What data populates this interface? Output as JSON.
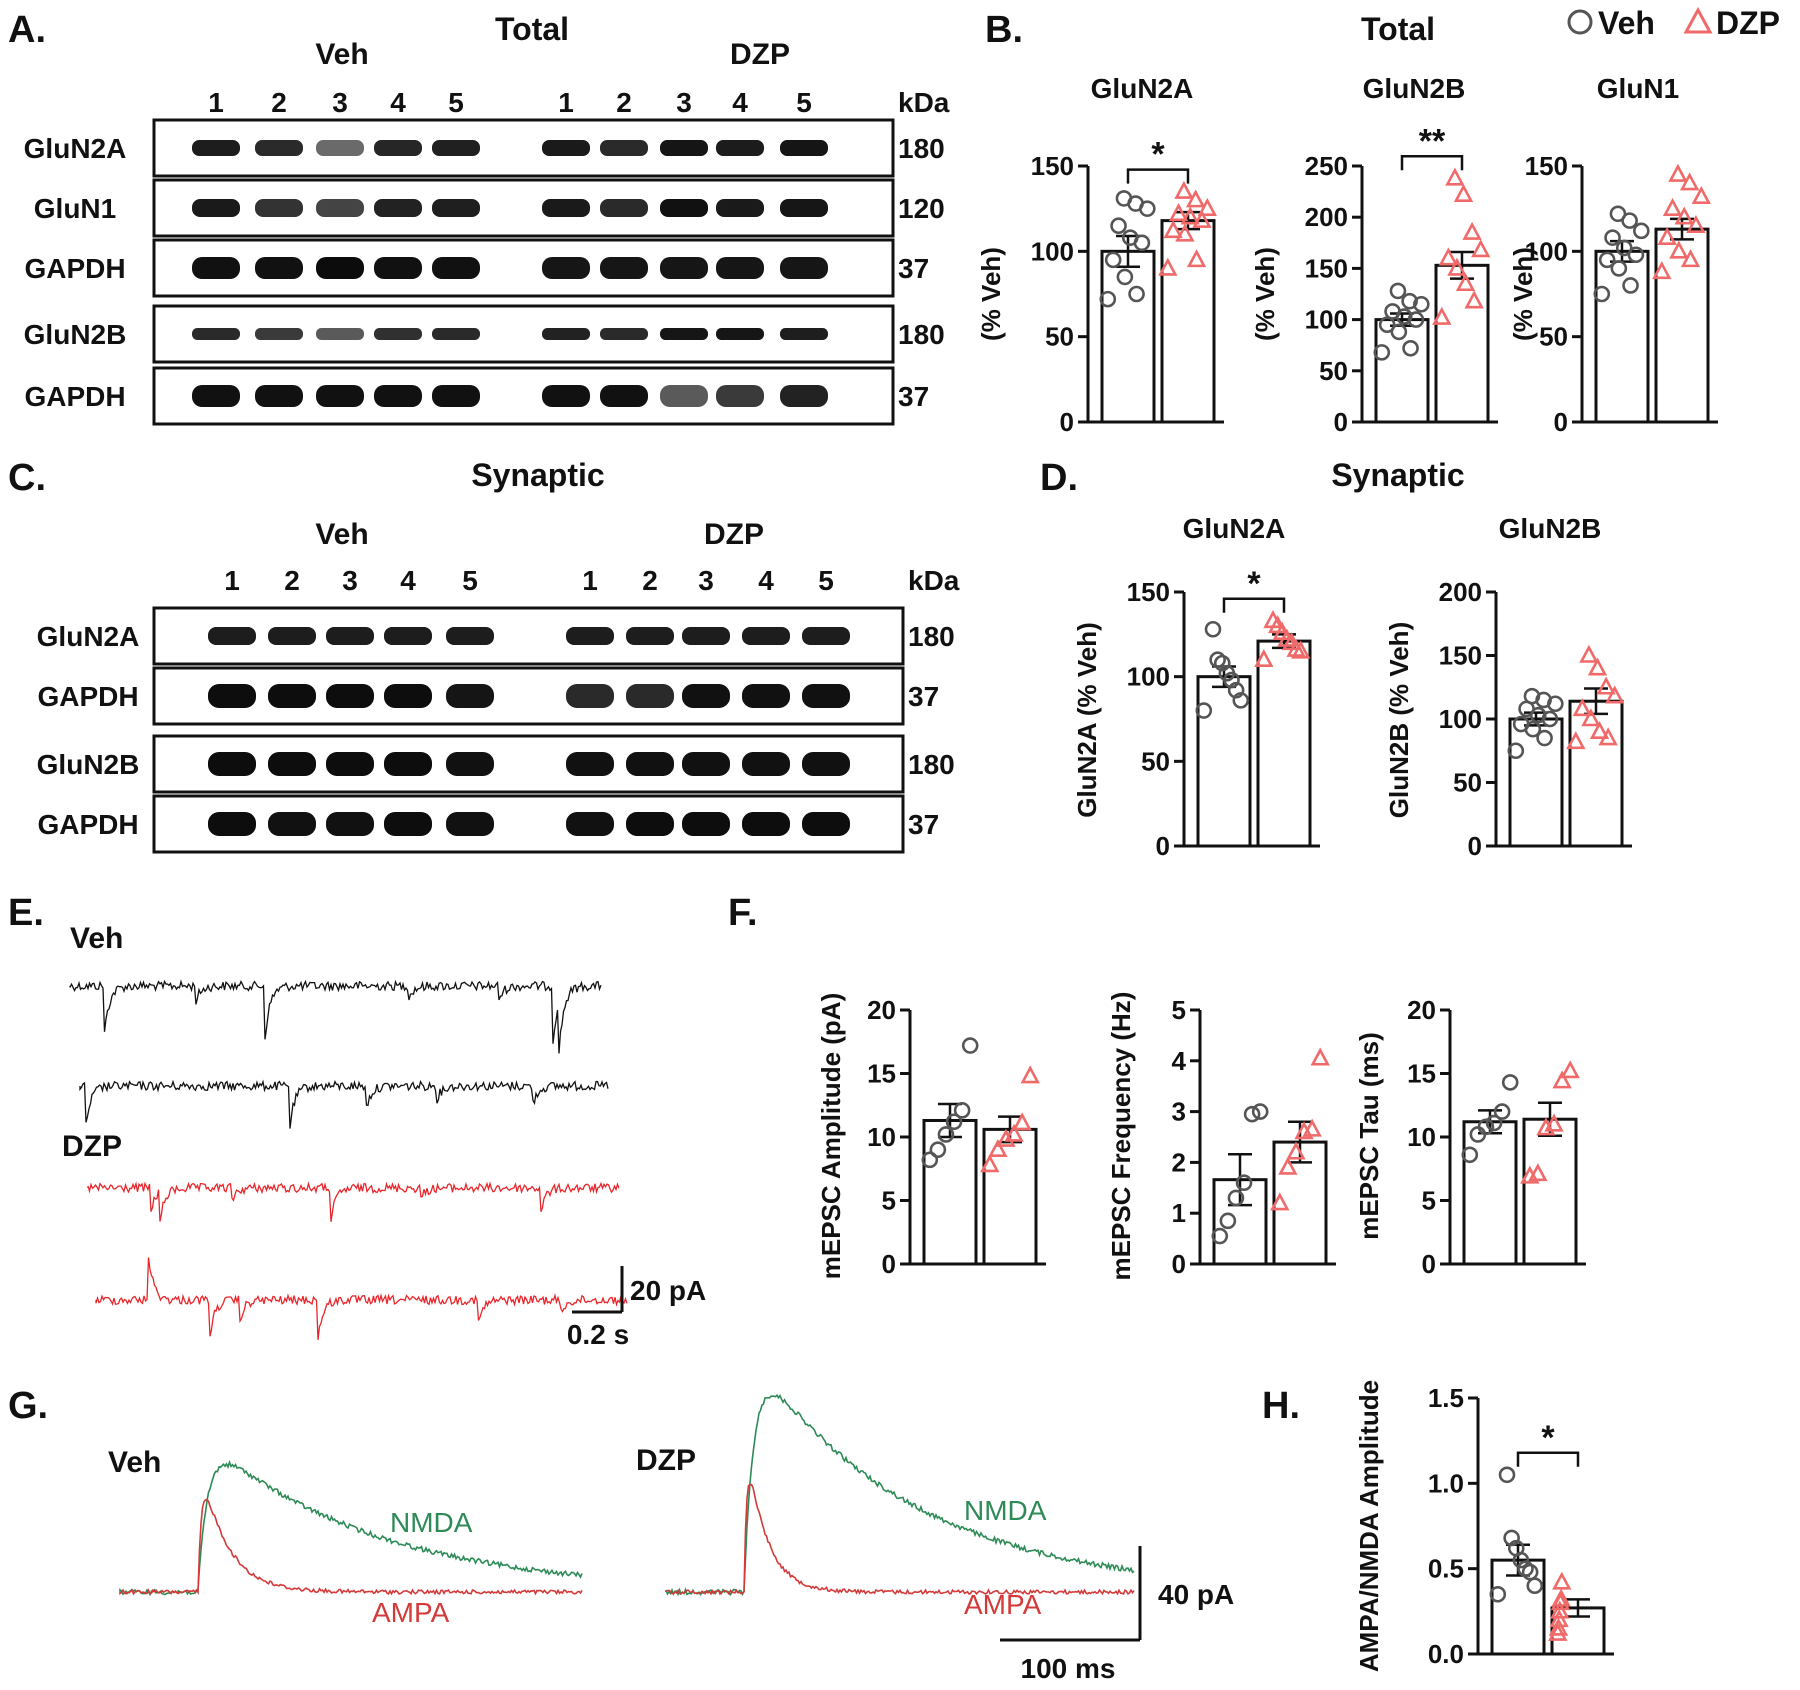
{
  "panels": {
    "A": {
      "letter": "A.",
      "title": "Total",
      "groups": [
        "Veh",
        "DZP"
      ],
      "lanes": [
        "1",
        "2",
        "3",
        "4",
        "5"
      ],
      "unit": "kDa",
      "rows": [
        {
          "label": "GluN2A",
          "kda": "180"
        },
        {
          "label": "GluN1",
          "kda": "120"
        },
        {
          "label": "GAPDH",
          "kda": "37"
        },
        {
          "label": "GluN2B",
          "kda": "180"
        },
        {
          "label": "GAPDH",
          "kda": "37"
        }
      ]
    },
    "B": {
      "letter": "B.",
      "title": "Total"
    },
    "C": {
      "letter": "C.",
      "title": "Synaptic",
      "groups": [
        "Veh",
        "DZP"
      ],
      "lanes": [
        "1",
        "2",
        "3",
        "4",
        "5"
      ],
      "unit": "kDa",
      "rows": [
        {
          "label": "GluN2A",
          "kda": "180"
        },
        {
          "label": "GAPDH",
          "kda": "37"
        },
        {
          "label": "GluN2B",
          "kda": "180"
        },
        {
          "label": "GAPDH",
          "kda": "37"
        }
      ]
    },
    "D": {
      "letter": "D.",
      "title": "Synaptic"
    },
    "E": {
      "letter": "E.",
      "groups": [
        "Veh",
        "DZP"
      ],
      "scale_y": "20 pA",
      "scale_x": "0.2 s"
    },
    "F": {
      "letter": "F."
    },
    "G": {
      "letter": "G.",
      "groups": [
        "Veh",
        "DZP"
      ],
      "trace_labels": {
        "nmda": "NMDA",
        "ampa": "AMPA"
      },
      "scale_y": "40 pA",
      "scale_x": "100 ms"
    },
    "H": {
      "letter": "H."
    }
  },
  "legend": {
    "items": [
      {
        "label": "Veh",
        "marker": "circle",
        "color": "#555555"
      },
      {
        "label": "DZP",
        "marker": "triangle",
        "color": "#f06a6a"
      }
    ]
  },
  "colors": {
    "veh_marker": "#555555",
    "dzp_marker": "#f06a6a",
    "dzp_trace": "#e8262b",
    "nmda_trace": "#2e8b57",
    "ampa_trace": "#d43a3a"
  },
  "chart_data": [
    {
      "id": "B1",
      "type": "bar",
      "title": "GluN2A",
      "ylabel": "(% Veh)",
      "ylim": [
        0,
        150
      ],
      "yticks": [
        "0",
        "50",
        "100",
        "150"
      ],
      "categories": [
        "Veh",
        "DZP"
      ],
      "values": [
        100,
        118
      ],
      "sem": [
        9,
        5
      ],
      "points": [
        [
          72,
          75,
          85,
          95,
          105,
          108,
          115,
          125,
          128,
          131
        ],
        [
          90,
          95,
          110,
          112,
          118,
          120,
          122,
          125,
          130,
          135
        ]
      ],
      "significance": "*"
    },
    {
      "id": "B2",
      "type": "bar",
      "title": "GluN2B",
      "ylabel": "(% Veh)",
      "ylim": [
        0,
        250
      ],
      "yticks": [
        "0",
        "50",
        "100",
        "150",
        "200",
        "250"
      ],
      "categories": [
        "Veh",
        "DZP"
      ],
      "values": [
        100,
        153
      ],
      "sem": [
        6,
        13
      ],
      "points": [
        [
          68,
          72,
          88,
          95,
          100,
          103,
          108,
          115,
          118,
          128
        ],
        [
          102,
          118,
          135,
          150,
          160,
          168,
          185,
          222,
          238
        ]
      ],
      "significance": "**"
    },
    {
      "id": "B3",
      "type": "bar",
      "title": "GluN1",
      "ylabel": "(% Veh)",
      "ylim": [
        0,
        150
      ],
      "yticks": [
        "0",
        "50",
        "100",
        "150"
      ],
      "categories": [
        "Veh",
        "DZP"
      ],
      "values": [
        100,
        113
      ],
      "sem": [
        6,
        6
      ],
      "points": [
        [
          75,
          80,
          90,
          95,
          98,
          102,
          108,
          112,
          118,
          122
        ],
        [
          88,
          95,
          100,
          108,
          115,
          120,
          125,
          132,
          140,
          145
        ]
      ],
      "significance": ""
    },
    {
      "id": "D1",
      "type": "bar",
      "title": "GluN2A",
      "ylabel": "GluN2A (% Veh)",
      "ylim": [
        0,
        150
      ],
      "yticks": [
        "0",
        "50",
        "100",
        "150"
      ],
      "categories": [
        "Veh",
        "DZP"
      ],
      "values": [
        100,
        121
      ],
      "sem": [
        6,
        4
      ],
      "points": [
        [
          80,
          86,
          92,
          98,
          102,
          108,
          110,
          128
        ],
        [
          110,
          115,
          116,
          120,
          122,
          126,
          130,
          133
        ]
      ],
      "significance": "*"
    },
    {
      "id": "D2",
      "type": "bar",
      "title": "GluN2B",
      "ylabel": "GluN2B (% Veh)",
      "ylim": [
        0,
        200
      ],
      "yticks": [
        "0",
        "50",
        "100",
        "150",
        "200"
      ],
      "categories": [
        "Veh",
        "DZP"
      ],
      "values": [
        100,
        114
      ],
      "sem": [
        5,
        10
      ],
      "points": [
        [
          75,
          85,
          92,
          96,
          100,
          103,
          108,
          112,
          115,
          118
        ],
        [
          82,
          85,
          90,
          100,
          108,
          118,
          125,
          140,
          150
        ]
      ],
      "significance": ""
    },
    {
      "id": "F1",
      "type": "bar",
      "title": "",
      "ylabel": "mEPSC Amplitude (pA)",
      "ylim": [
        0,
        20
      ],
      "yticks": [
        "0",
        "5",
        "10",
        "15",
        "20"
      ],
      "categories": [
        "Veh",
        "DZP"
      ],
      "values": [
        11.3,
        10.6
      ],
      "sem": [
        1.3,
        1.0
      ],
      "points": [
        [
          8.2,
          9.0,
          10.2,
          11.2,
          12.1,
          17.2
        ],
        [
          7.8,
          9.0,
          9.8,
          10.2,
          11.1,
          14.8
        ]
      ],
      "significance": ""
    },
    {
      "id": "F2",
      "type": "bar",
      "title": "",
      "ylabel": "mEPSC Frequency (Hz)",
      "ylim": [
        0,
        5
      ],
      "yticks": [
        "0",
        "1",
        "2",
        "3",
        "4",
        "5"
      ],
      "categories": [
        "Veh",
        "DZP"
      ],
      "values": [
        1.66,
        2.4
      ],
      "sem": [
        0.5,
        0.4
      ],
      "points": [
        [
          0.55,
          0.85,
          1.3,
          1.6,
          2.95,
          3.0
        ],
        [
          1.2,
          1.9,
          2.2,
          2.6,
          2.65,
          4.05
        ]
      ],
      "significance": ""
    },
    {
      "id": "F3",
      "type": "bar",
      "title": "",
      "ylabel": "mEPSC Tau (ms)",
      "ylim": [
        0,
        20
      ],
      "yticks": [
        "0",
        "5",
        "10",
        "15",
        "20"
      ],
      "categories": [
        "Veh",
        "DZP"
      ],
      "values": [
        11.2,
        11.4
      ],
      "sem": [
        0.9,
        1.3
      ],
      "points": [
        [
          8.6,
          10.2,
          10.8,
          11.1,
          12.0,
          14.3
        ],
        [
          6.9,
          7.1,
          10.7,
          11.0,
          14.4,
          15.2
        ]
      ],
      "significance": ""
    },
    {
      "id": "H1",
      "type": "bar",
      "title": "",
      "ylabel": "AMPA/NMDA Amplitude",
      "ylim": [
        0,
        1.5
      ],
      "yticks": [
        "0.0",
        "0.5",
        "1.0",
        "1.5"
      ],
      "categories": [
        "Veh",
        "DZP"
      ],
      "values": [
        0.55,
        0.27
      ],
      "sem": [
        0.09,
        0.05
      ],
      "points": [
        [
          0.35,
          0.4,
          0.48,
          0.5,
          0.55,
          0.62,
          0.68,
          1.05
        ],
        [
          0.12,
          0.15,
          0.2,
          0.25,
          0.3,
          0.32,
          0.42
        ]
      ],
      "significance": "*"
    }
  ]
}
